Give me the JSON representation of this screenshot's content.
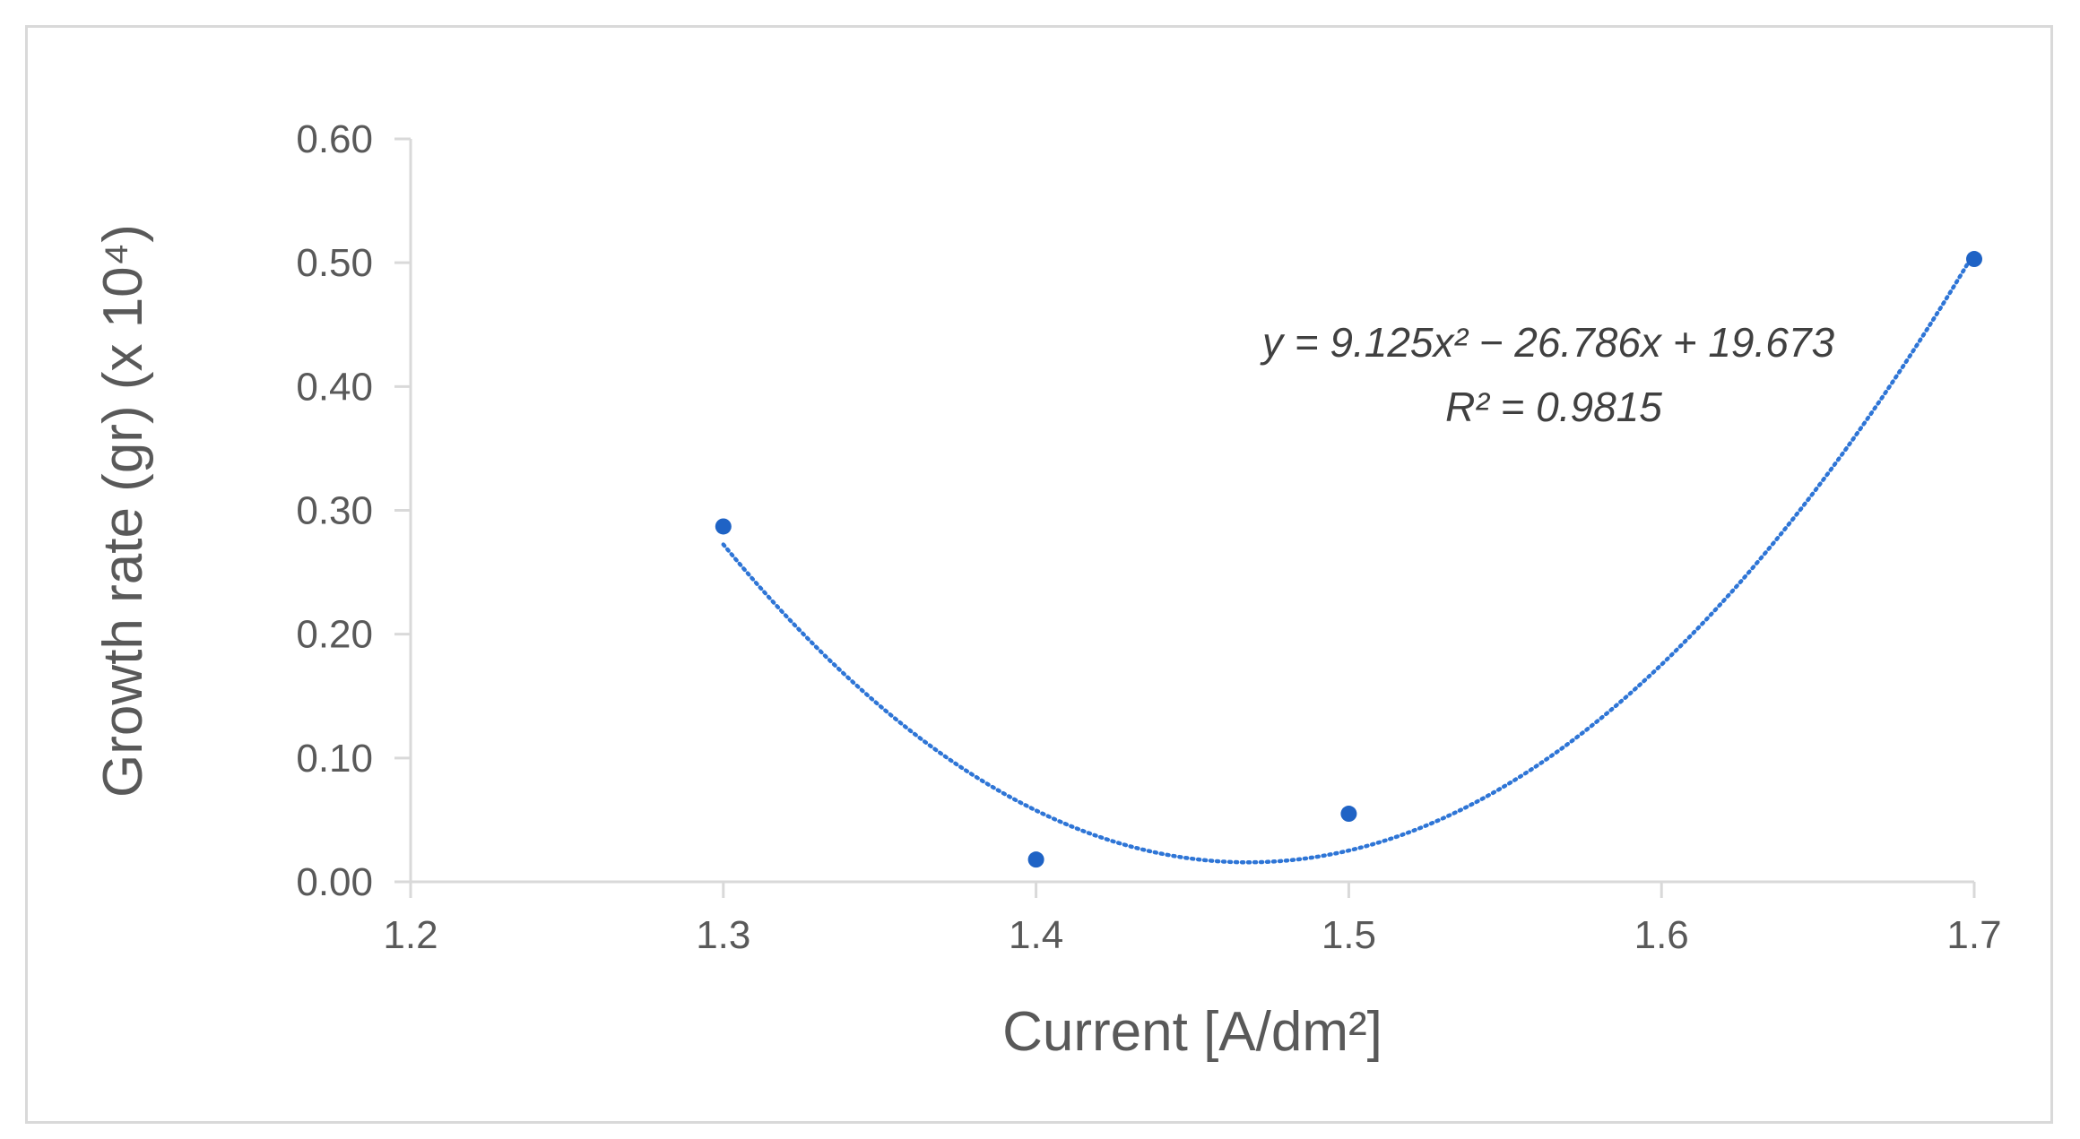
{
  "chart_data": {
    "type": "scatter",
    "title": "",
    "xlabel": "Current [A/dm²]",
    "ylabel": "Growth rate (gr) (x 10⁴)",
    "xlim": [
      1.2,
      1.7
    ],
    "ylim": [
      0,
      0.6
    ],
    "x_ticks": [
      "1.2",
      "1.3",
      "1.4",
      "1.5",
      "1.6",
      "1.7"
    ],
    "y_ticks": [
      "0.00",
      "0.10",
      "0.20",
      "0.30",
      "0.40",
      "0.50",
      "0.60"
    ],
    "points": [
      {
        "x": 1.3,
        "y": 0.287
      },
      {
        "x": 1.4,
        "y": 0.018
      },
      {
        "x": 1.5,
        "y": 0.055
      },
      {
        "x": 1.7,
        "y": 0.503
      }
    ],
    "trendline": {
      "kind": "polynomial-2",
      "coefficients": [
        9.125,
        -26.786,
        19.673
      ],
      "x_range": [
        1.3,
        1.7
      ],
      "style": "dotted",
      "equation_label": "y = 9.125x² − 26.786x + 19.673",
      "r2_label": "R² = 0.9815"
    },
    "grid": false,
    "legend": "none",
    "colors": {
      "marker": "#1f63c5",
      "trendline": "#2e75d6",
      "axis": "#d9d9d9",
      "text": "#595959"
    }
  }
}
